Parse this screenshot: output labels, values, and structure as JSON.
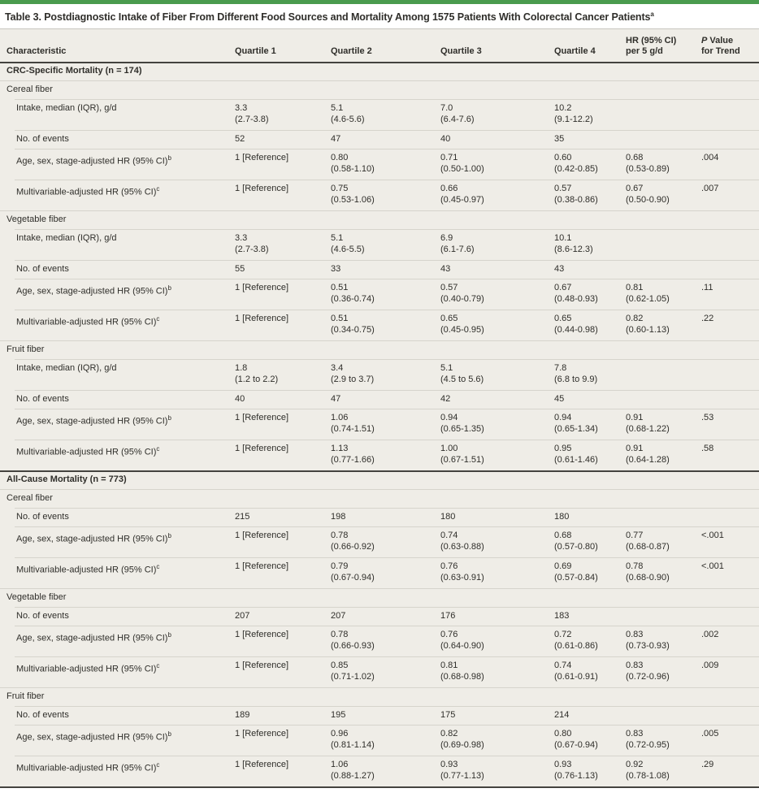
{
  "accent_color": "#4A9B4E",
  "table": {
    "title": "Table 3. Postdiagnostic Intake of Fiber From Different Food Sources and Mortality Among 1575 Patients With Colorectal Cancer Patients",
    "title_footnote_marker": "a",
    "columns": [
      {
        "id": "characteristic",
        "lines": [
          "Characteristic"
        ]
      },
      {
        "id": "quartile-1",
        "lines": [
          "Quartile 1"
        ]
      },
      {
        "id": "quartile-2",
        "lines": [
          "Quartile 2"
        ]
      },
      {
        "id": "quartile-3",
        "lines": [
          "Quartile 3"
        ]
      },
      {
        "id": "quartile-4",
        "lines": [
          "Quartile 4"
        ]
      },
      {
        "id": "hr-per-5gd",
        "lines": [
          "HR (95% CI)",
          "per 5 g/d"
        ]
      },
      {
        "id": "p-value",
        "lines": [
          "P Value",
          "for Trend"
        ],
        "italic_prefix": 1
      }
    ],
    "rows": [
      {
        "type": "section",
        "label": "CRC-Specific Mortality (n = 174)"
      },
      {
        "type": "category",
        "label": "Cereal fiber"
      },
      {
        "type": "data",
        "label": "Intake, median (IQR), g/d",
        "cells": [
          [
            "3.3",
            "(2.7-3.8)"
          ],
          [
            "5.1",
            "(4.6-5.6)"
          ],
          [
            "7.0",
            "(6.4-7.6)"
          ],
          [
            "10.2",
            "(9.1-12.2)"
          ],
          [],
          []
        ]
      },
      {
        "type": "data",
        "label": "No. of events",
        "cells": [
          [
            "52"
          ],
          [
            "47"
          ],
          [
            "40"
          ],
          [
            "35"
          ],
          [],
          []
        ]
      },
      {
        "type": "data",
        "label": "Age, sex, stage-adjusted HR (95% CI)",
        "sup": "b",
        "cells": [
          [
            "1 [Reference]"
          ],
          [
            "0.80",
            "(0.58-1.10)"
          ],
          [
            "0.71",
            "(0.50-1.00)"
          ],
          [
            "0.60",
            "(0.42-0.85)"
          ],
          [
            "0.68",
            "(0.53-0.89)"
          ],
          [
            ".004"
          ]
        ]
      },
      {
        "type": "data",
        "label": "Multivariable-adjusted HR (95% CI)",
        "sup": "c",
        "cells": [
          [
            "1 [Reference]"
          ],
          [
            "0.75",
            "(0.53-1.06)"
          ],
          [
            "0.66",
            "(0.45-0.97)"
          ],
          [
            "0.57",
            "(0.38-0.86)"
          ],
          [
            "0.67",
            "(0.50-0.90)"
          ],
          [
            ".007"
          ]
        ]
      },
      {
        "type": "category",
        "label": "Vegetable fiber"
      },
      {
        "type": "data",
        "label": "Intake, median (IQR), g/d",
        "cells": [
          [
            "3.3",
            "(2.7-3.8)"
          ],
          [
            "5.1",
            "(4.6-5.5)"
          ],
          [
            "6.9",
            "(6.1-7.6)"
          ],
          [
            "10.1",
            "(8.6-12.3)"
          ],
          [],
          []
        ]
      },
      {
        "type": "data",
        "label": "No. of events",
        "cells": [
          [
            "55"
          ],
          [
            "33"
          ],
          [
            "43"
          ],
          [
            "43"
          ],
          [],
          []
        ]
      },
      {
        "type": "data",
        "label": "Age, sex, stage-adjusted HR (95% CI)",
        "sup": "b",
        "cells": [
          [
            "1 [Reference]"
          ],
          [
            "0.51",
            "(0.36-0.74)"
          ],
          [
            "0.57",
            "(0.40-0.79)"
          ],
          [
            "0.67",
            "(0.48-0.93)"
          ],
          [
            "0.81",
            "(0.62-1.05)"
          ],
          [
            ".11"
          ]
        ]
      },
      {
        "type": "data",
        "label": "Multivariable-adjusted HR (95% CI)",
        "sup": "c",
        "cells": [
          [
            "1 [Reference]"
          ],
          [
            "0.51",
            "(0.34-0.75)"
          ],
          [
            "0.65",
            "(0.45-0.95)"
          ],
          [
            "0.65",
            "(0.44-0.98)"
          ],
          [
            "0.82",
            "(0.60-1.13)"
          ],
          [
            ".22"
          ]
        ]
      },
      {
        "type": "category",
        "label": "Fruit fiber"
      },
      {
        "type": "data",
        "label": "Intake, median (IQR), g/d",
        "cells": [
          [
            "1.8",
            "(1.2 to 2.2)"
          ],
          [
            "3.4",
            "(2.9 to 3.7)"
          ],
          [
            "5.1",
            "(4.5 to 5.6)"
          ],
          [
            "7.8",
            "(6.8 to 9.9)"
          ],
          [],
          []
        ]
      },
      {
        "type": "data",
        "label": "No. of events",
        "cells": [
          [
            "40"
          ],
          [
            "47"
          ],
          [
            "42"
          ],
          [
            "45"
          ],
          [],
          []
        ]
      },
      {
        "type": "data",
        "label": "Age, sex, stage-adjusted HR (95% CI)",
        "sup": "b",
        "cells": [
          [
            "1 [Reference]"
          ],
          [
            "1.06",
            "(0.74-1.51)"
          ],
          [
            "0.94",
            "(0.65-1.35)"
          ],
          [
            "0.94",
            "(0.65-1.34)"
          ],
          [
            "0.91",
            "(0.68-1.22)"
          ],
          [
            ".53"
          ]
        ]
      },
      {
        "type": "data",
        "label": "Multivariable-adjusted HR (95% CI)",
        "sup": "c",
        "cells": [
          [
            "1 [Reference]"
          ],
          [
            "1.13",
            "(0.77-1.66)"
          ],
          [
            "1.00",
            "(0.67-1.51)"
          ],
          [
            "0.95",
            "(0.61-1.46)"
          ],
          [
            "0.91",
            "(0.64-1.28)"
          ],
          [
            ".58"
          ]
        ]
      },
      {
        "type": "section",
        "label": "All-Cause Mortality (n = 773)"
      },
      {
        "type": "category",
        "label": "Cereal fiber"
      },
      {
        "type": "data",
        "label": "No. of events",
        "cells": [
          [
            "215"
          ],
          [
            "198"
          ],
          [
            "180"
          ],
          [
            "180"
          ],
          [],
          []
        ]
      },
      {
        "type": "data",
        "label": "Age, sex, stage-adjusted HR (95% CI)",
        "sup": "b",
        "cells": [
          [
            "1 [Reference]"
          ],
          [
            "0.78",
            "(0.66-0.92)"
          ],
          [
            "0.74",
            "(0.63-0.88)"
          ],
          [
            "0.68",
            "(0.57-0.80)"
          ],
          [
            "0.77",
            "(0.68-0.87)"
          ],
          [
            "<.001"
          ]
        ]
      },
      {
        "type": "data",
        "label": "Multivariable-adjusted HR (95% CI)",
        "sup": "c",
        "cells": [
          [
            "1 [Reference]"
          ],
          [
            "0.79",
            "(0.67-0.94)"
          ],
          [
            "0.76",
            "(0.63-0.91)"
          ],
          [
            "0.69",
            "(0.57-0.84)"
          ],
          [
            "0.78",
            "(0.68-0.90)"
          ],
          [
            "<.001"
          ]
        ]
      },
      {
        "type": "category",
        "label": "Vegetable fiber"
      },
      {
        "type": "data",
        "label": "No. of events",
        "cells": [
          [
            "207"
          ],
          [
            "207"
          ],
          [
            "176"
          ],
          [
            "183"
          ],
          [],
          []
        ]
      },
      {
        "type": "data",
        "label": "Age, sex, stage-adjusted HR (95% CI)",
        "sup": "b",
        "cells": [
          [
            "1 [Reference]"
          ],
          [
            "0.78",
            "(0.66-0.93)"
          ],
          [
            "0.76",
            "(0.64-0.90)"
          ],
          [
            "0.72",
            "(0.61-0.86)"
          ],
          [
            "0.83",
            "(0.73-0.93)"
          ],
          [
            ".002"
          ]
        ]
      },
      {
        "type": "data",
        "label": "Multivariable-adjusted HR (95% CI)",
        "sup": "c",
        "cells": [
          [
            "1 [Reference]"
          ],
          [
            "0.85",
            "(0.71-1.02)"
          ],
          [
            "0.81",
            "(0.68-0.98)"
          ],
          [
            "0.74",
            "(0.61-0.91)"
          ],
          [
            "0.83",
            "(0.72-0.96)"
          ],
          [
            ".009"
          ]
        ]
      },
      {
        "type": "category",
        "label": "Fruit fiber"
      },
      {
        "type": "data",
        "label": "No. of events",
        "cells": [
          [
            "189"
          ],
          [
            "195"
          ],
          [
            "175"
          ],
          [
            "214"
          ],
          [],
          []
        ]
      },
      {
        "type": "data",
        "label": "Age, sex, stage-adjusted HR (95% CI)",
        "sup": "b",
        "cells": [
          [
            "1 [Reference]"
          ],
          [
            "0.96",
            "(0.81-1.14)"
          ],
          [
            "0.82",
            "(0.69-0.98)"
          ],
          [
            "0.80",
            "(0.67-0.94)"
          ],
          [
            "0.83",
            "(0.72-0.95)"
          ],
          [
            ".005"
          ]
        ]
      },
      {
        "type": "data",
        "label": "Multivariable-adjusted HR (95% CI)",
        "sup": "c",
        "cells": [
          [
            "1 [Reference]"
          ],
          [
            "1.06",
            "(0.88-1.27)"
          ],
          [
            "0.93",
            "(0.77-1.13)"
          ],
          [
            "0.93",
            "(0.76-1.13)"
          ],
          [
            "0.92",
            "(0.78-1.08)"
          ],
          [
            ".29"
          ]
        ]
      }
    ]
  }
}
